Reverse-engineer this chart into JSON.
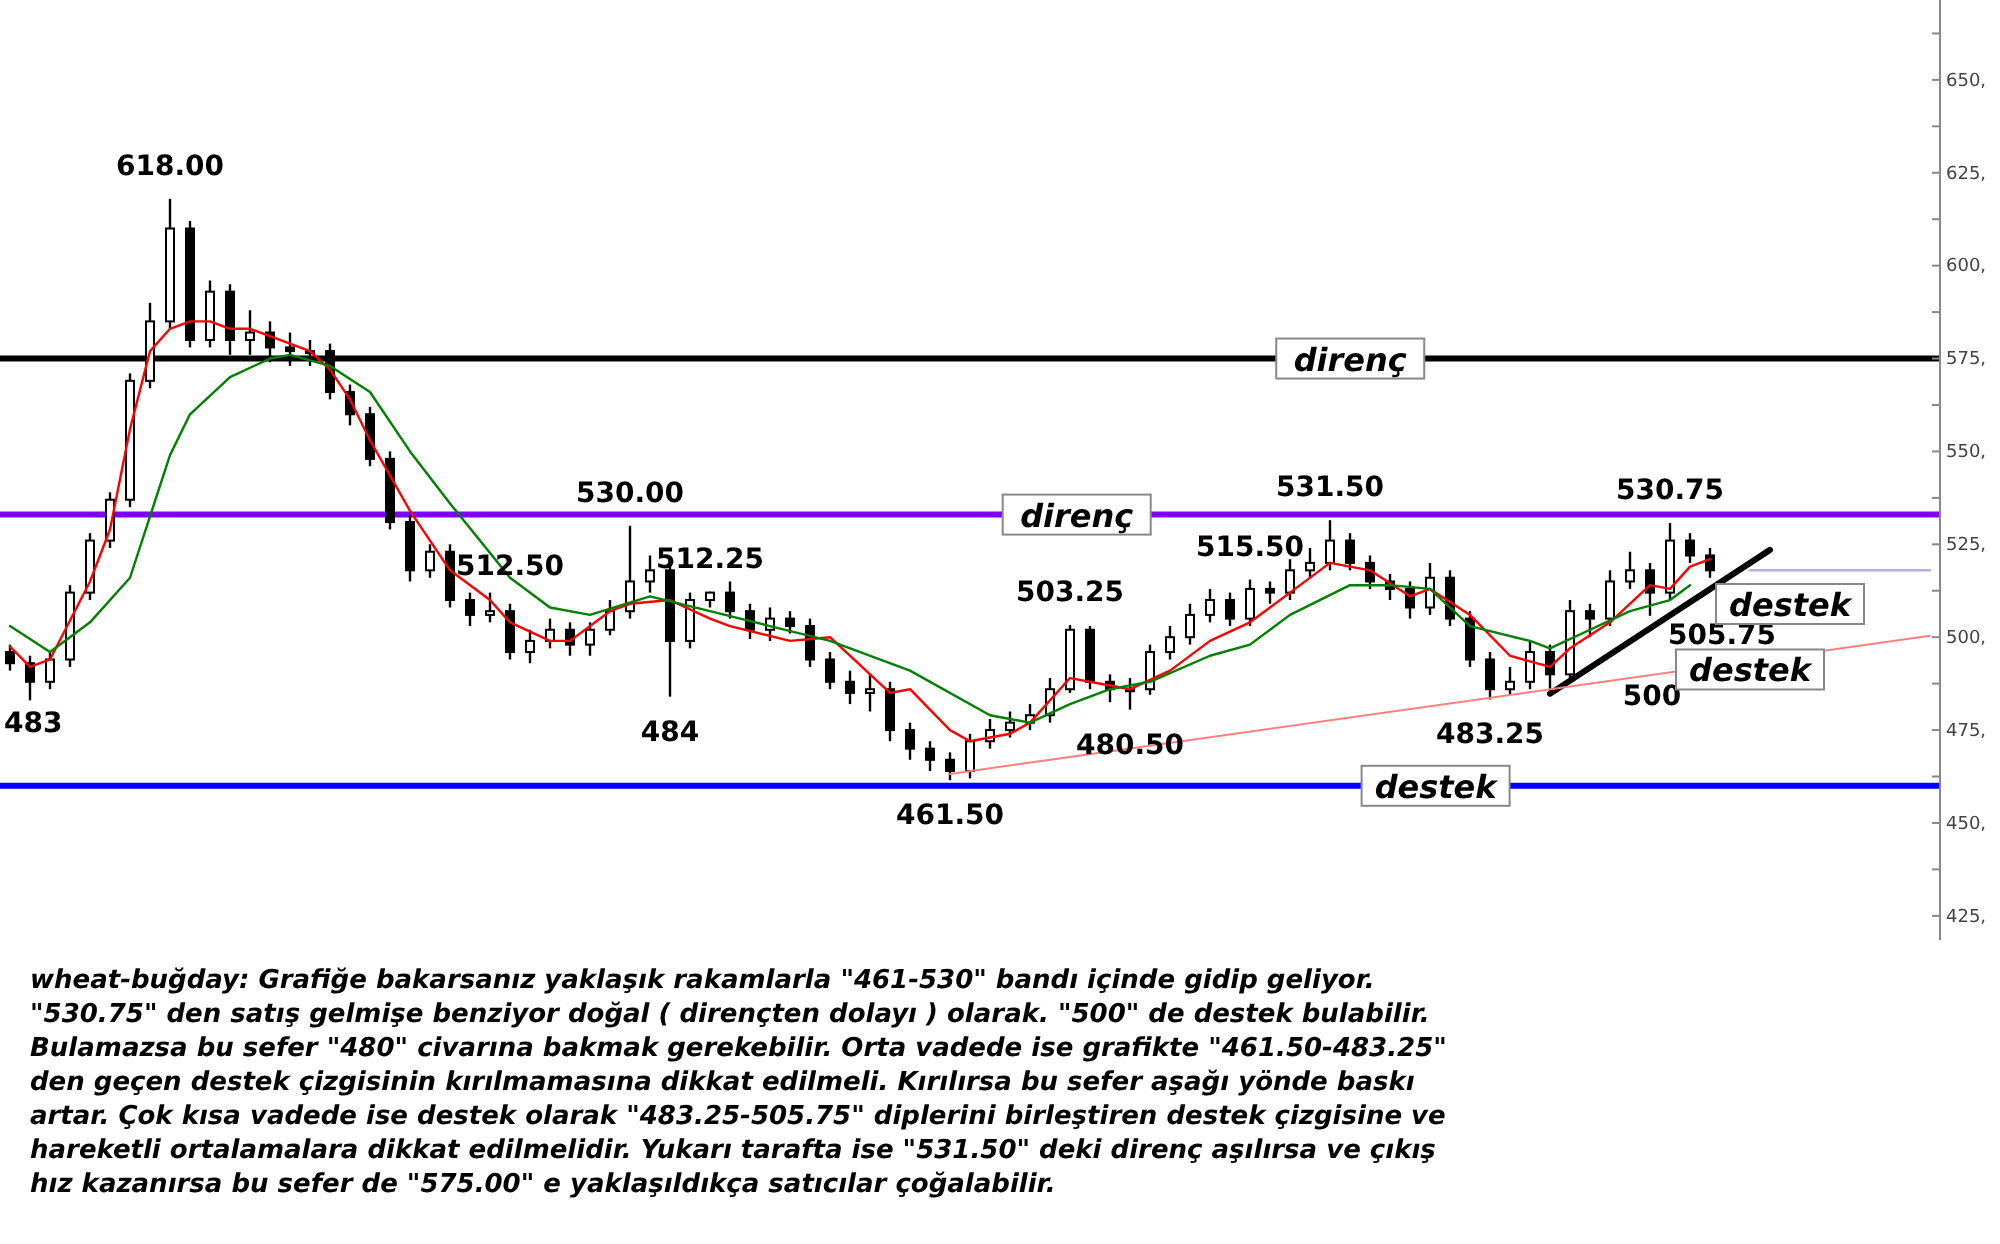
{
  "chart_data": {
    "type": "candlestick",
    "categories": [
      null,
      null,
      null,
      null,
      null,
      null,
      null,
      null,
      null,
      null,
      null,
      null,
      null,
      null,
      null,
      null,
      null,
      null,
      null,
      null,
      null,
      null,
      null,
      null,
      null,
      null,
      null,
      null,
      null,
      null,
      null,
      null,
      null,
      null,
      null,
      null,
      null,
      null,
      null,
      null,
      null,
      null,
      null,
      null,
      null,
      null,
      null,
      null,
      null,
      null,
      null,
      null,
      null,
      null,
      null,
      null,
      null,
      null,
      null,
      null,
      null,
      null,
      null,
      null,
      null,
      null,
      null,
      null,
      null,
      null,
      null,
      null,
      null,
      null,
      null,
      null,
      null,
      null,
      null,
      null,
      null,
      null,
      null,
      null,
      null,
      null,
      null,
      null,
      null,
      null,
      null,
      null,
      null,
      null,
      null,
      null,
      null
    ],
    "ylim": [
      418.5,
      671.5
    ],
    "yticks": [
      {
        "value": 425,
        "label": "425,"
      },
      {
        "value": 437.5,
        "label": null
      },
      {
        "value": 450,
        "label": "450,"
      },
      {
        "value": 462.5,
        "label": null
      },
      {
        "value": 475,
        "label": "475,"
      },
      {
        "value": 487.5,
        "label": null
      },
      {
        "value": 500,
        "label": "500,"
      },
      {
        "value": 512.5,
        "label": null
      },
      {
        "value": 525,
        "label": "525,"
      },
      {
        "value": 537.5,
        "label": null
      },
      {
        "value": 550,
        "label": "550,"
      },
      {
        "value": 562.5,
        "label": null
      },
      {
        "value": 575,
        "label": "575,"
      },
      {
        "value": 587.5,
        "label": null
      },
      {
        "value": 600,
        "label": "600,"
      },
      {
        "value": 612.5,
        "label": null
      },
      {
        "value": 625,
        "label": "625,"
      },
      {
        "value": 637.5,
        "label": null
      },
      {
        "value": 650,
        "label": "650,"
      },
      {
        "value": 662.5,
        "label": null
      }
    ],
    "tick_labels": "y",
    "series": [
      {
        "color": "#000000",
        "ohlc": [
          [
            496,
            498,
            491,
            493
          ],
          [
            493,
            495,
            483,
            488
          ],
          [
            488,
            496,
            486,
            494
          ],
          [
            494,
            514,
            492,
            512
          ],
          [
            512,
            528,
            510,
            526
          ],
          [
            526,
            539,
            524,
            537
          ],
          [
            537,
            571,
            535,
            569
          ],
          [
            569,
            590,
            567,
            585
          ],
          [
            585,
            618,
            583,
            610
          ],
          [
            610,
            612,
            578,
            580
          ],
          [
            580,
            596,
            578,
            593
          ],
          [
            593,
            595,
            576,
            580
          ],
          [
            580,
            588,
            576,
            582
          ],
          [
            582,
            585,
            574,
            578
          ],
          [
            578,
            582,
            573,
            577
          ],
          [
            577,
            580,
            573,
            577
          ],
          [
            577,
            579,
            564,
            566
          ],
          [
            566,
            568,
            557,
            560
          ],
          [
            560,
            562,
            546,
            548
          ],
          [
            548,
            550,
            529,
            531
          ],
          [
            531,
            533,
            515,
            518
          ],
          [
            518,
            525,
            516,
            523
          ],
          [
            523,
            525,
            508,
            510
          ],
          [
            510,
            512,
            503,
            506
          ],
          [
            506,
            512,
            504,
            507
          ],
          [
            507,
            509,
            494,
            496
          ],
          [
            496,
            502,
            493,
            499
          ],
          [
            499,
            505,
            497,
            502
          ],
          [
            502,
            504,
            495,
            498
          ],
          [
            498,
            504,
            495,
            502
          ],
          [
            502,
            510,
            500.5,
            507
          ],
          [
            507,
            530,
            505,
            515
          ],
          [
            515,
            522,
            512,
            518
          ],
          [
            518,
            520,
            484,
            499
          ],
          [
            499,
            512,
            497,
            510
          ],
          [
            510,
            512.25,
            508,
            512
          ],
          [
            512,
            515,
            505,
            507
          ],
          [
            507,
            509,
            499.5,
            502
          ],
          [
            502,
            508,
            499,
            505
          ],
          [
            505,
            507,
            501,
            503
          ],
          [
            503,
            505,
            492,
            494
          ],
          [
            494,
            496,
            486,
            488
          ],
          [
            488,
            491,
            482,
            485
          ],
          [
            485,
            490,
            480,
            486
          ],
          [
            486,
            488,
            472,
            475
          ],
          [
            475,
            477,
            467,
            470
          ],
          [
            470,
            472,
            464,
            467
          ],
          [
            467,
            469,
            461.5,
            464
          ],
          [
            464,
            474,
            462,
            472
          ],
          [
            472,
            478,
            470,
            475
          ],
          [
            475,
            480,
            473,
            477
          ],
          [
            477,
            482,
            475,
            479
          ],
          [
            479,
            489,
            477,
            486
          ],
          [
            486,
            503.25,
            485,
            502
          ],
          [
            502,
            503,
            486,
            488
          ],
          [
            488,
            490,
            482.5,
            486
          ],
          [
            486,
            489,
            480.5,
            486
          ],
          [
            486,
            498,
            484.5,
            496
          ],
          [
            496,
            503,
            494,
            500
          ],
          [
            500,
            509,
            498,
            506
          ],
          [
            506,
            513,
            504,
            510
          ],
          [
            510,
            512,
            503,
            505
          ],
          [
            505,
            515.5,
            503,
            513
          ],
          [
            513,
            515,
            509,
            512
          ],
          [
            512,
            521,
            510,
            518
          ],
          [
            518,
            524,
            516,
            520
          ],
          [
            520,
            531.5,
            518,
            526
          ],
          [
            526,
            528,
            518,
            520
          ],
          [
            520,
            522,
            513,
            515
          ],
          [
            515,
            517,
            510,
            513
          ],
          [
            513,
            515,
            505,
            508
          ],
          [
            508,
            520,
            506,
            516
          ],
          [
            516,
            518,
            503,
            505
          ],
          [
            505,
            507,
            492,
            494
          ],
          [
            494,
            496,
            483.25,
            486
          ],
          [
            486,
            492,
            484.5,
            488
          ],
          [
            488,
            499,
            486,
            496
          ],
          [
            496,
            498,
            485,
            490
          ],
          [
            490,
            510,
            488,
            507
          ],
          [
            507,
            509,
            500,
            505
          ],
          [
            505,
            518,
            503,
            515
          ],
          [
            515,
            523,
            513,
            518
          ],
          [
            518,
            520,
            505.75,
            512
          ],
          [
            512,
            530.75,
            510,
            526
          ],
          [
            526,
            528,
            520,
            522
          ],
          [
            522,
            524,
            516,
            518
          ],
          null,
          null,
          null,
          null,
          null,
          null,
          null,
          null,
          null,
          null,
          null
        ]
      },
      {
        "type": "line",
        "color": "#ff0000",
        "values": [
          497.5,
          492,
          494,
          null,
          515,
          529,
          556,
          577,
          583,
          585,
          585,
          583,
          583,
          581,
          null,
          577,
          572,
          564,
          553,
          null,
          534,
          526,
          518,
          null,
          510,
          504,
          null,
          499,
          499,
          null,
          507,
          509,
          null,
          510,
          null,
          505,
          503,
          null,
          null,
          499,
          null,
          500,
          null,
          null,
          485,
          486,
          null,
          475,
          472,
          null,
          474,
          477,
          null,
          489,
          null,
          487,
          486,
          null,
          491,
          null,
          499,
          null,
          504,
          null,
          512,
          null,
          520,
          null,
          518,
          null,
          511,
          513,
          null,
          506,
          null,
          495,
          null,
          492,
          497,
          null,
          504,
          null,
          514,
          513,
          519,
          521,
          null,
          null,
          null,
          null,
          null,
          null,
          null,
          null,
          null,
          null,
          null
        ]
      },
      {
        "type": "line",
        "color": "#008000",
        "values": [
          503,
          null,
          496,
          null,
          504,
          null,
          516,
          null,
          549,
          560,
          null,
          570,
          null,
          575,
          576,
          null,
          573,
          null,
          566,
          null,
          550,
          null,
          536,
          null,
          null,
          516,
          null,
          508,
          null,
          506,
          null,
          null,
          511,
          null,
          null,
          507,
          null,
          null,
          503,
          null,
          null,
          499,
          null,
          null,
          null,
          491,
          null,
          null,
          null,
          479,
          null,
          477,
          null,
          482,
          null,
          486,
          null,
          488,
          null,
          null,
          495,
          null,
          498,
          null,
          506,
          null,
          null,
          514,
          null,
          514,
          null,
          513,
          null,
          503,
          null,
          null,
          499,
          497,
          null,
          502,
          null,
          507,
          null,
          510,
          514,
          null,
          null,
          null,
          null,
          null,
          null,
          null,
          null,
          null,
          null,
          null,
          null
        ]
      },
      {
        "type": "line",
        "color": "#000000",
        "values": [
          null,
          null,
          null,
          null,
          null,
          null,
          null,
          null,
          null,
          null,
          null,
          null,
          null,
          null,
          null,
          null,
          null,
          null,
          null,
          null,
          null,
          null,
          null,
          null,
          null,
          null,
          null,
          null,
          null,
          null,
          null,
          null,
          null,
          null,
          null,
          null,
          null,
          null,
          null,
          null,
          null,
          null,
          null,
          null,
          null,
          null,
          null,
          null,
          null,
          null,
          null,
          null,
          null,
          null,
          null,
          null,
          null,
          null,
          null,
          null,
          null,
          null,
          null,
          null,
          null,
          null,
          null,
          null,
          null,
          null,
          null,
          null,
          null,
          null,
          null,
          null,
          null,
          484.8,
          null,
          null,
          null,
          null,
          null,
          null,
          null,
          null,
          null,
          null,
          523.5,
          null,
          null,
          null,
          null,
          null,
          null,
          null,
          null
        ]
      },
      {
        "type": "line",
        "color": "#ff8080",
        "values": [
          null,
          null,
          null,
          null,
          null,
          null,
          null,
          null,
          null,
          null,
          null,
          null,
          null,
          null,
          null,
          null,
          null,
          null,
          null,
          null,
          null,
          null,
          null,
          null,
          null,
          null,
          null,
          null,
          null,
          null,
          null,
          null,
          null,
          null,
          null,
          null,
          null,
          null,
          null,
          null,
          null,
          null,
          null,
          null,
          null,
          null,
          null,
          463.2,
          null,
          null,
          null,
          null,
          null,
          null,
          null,
          null,
          null,
          null,
          null,
          null,
          null,
          null,
          null,
          null,
          null,
          null,
          null,
          null,
          null,
          null,
          null,
          null,
          null,
          null,
          null,
          null,
          null,
          null,
          null,
          null,
          null,
          null,
          null,
          null,
          null,
          null,
          null,
          null,
          null,
          null,
          null,
          null,
          null,
          null,
          null,
          null,
          500.4
        ]
      },
      {
        "type": "line",
        "color": "#b0b0e0",
        "values": [
          null,
          null,
          null,
          null,
          null,
          null,
          null,
          null,
          null,
          null,
          null,
          null,
          null,
          null,
          null,
          null,
          null,
          null,
          null,
          null,
          null,
          null,
          null,
          null,
          null,
          null,
          null,
          null,
          null,
          null,
          null,
          null,
          null,
          null,
          null,
          null,
          null,
          null,
          null,
          null,
          null,
          null,
          null,
          null,
          null,
          null,
          null,
          null,
          null,
          null,
          null,
          null,
          null,
          null,
          null,
          null,
          null,
          null,
          null,
          null,
          null,
          null,
          null,
          null,
          null,
          null,
          null,
          null,
          null,
          null,
          null,
          null,
          null,
          null,
          null,
          null,
          null,
          null,
          null,
          null,
          null,
          null,
          null,
          null,
          null,
          null,
          null,
          518,
          null,
          null,
          null,
          null,
          null,
          null,
          null,
          null,
          518
        ]
      }
    ],
    "ref_lines": [
      {
        "axis": "y",
        "value": 575,
        "label": "direnç",
        "color": "#000000"
      },
      {
        "axis": "y",
        "value": 533,
        "label": "direnç",
        "color": "#8000ff"
      },
      {
        "axis": "y",
        "value": 460,
        "label": "destek",
        "color": "#0000ff"
      }
    ],
    "annotations": [
      "483",
      {
        "text": "618.00",
        "y": 618
      },
      {
        "text": "512.50",
        "y": 512.5
      },
      {
        "text": "530.00",
        "y": 530
      },
      {
        "text": "484",
        "y": 484
      },
      {
        "text": "512.25",
        "y": 512.25
      },
      {
        "text": "461.50",
        "y": 461.5
      },
      {
        "text": "503.25",
        "y": 503.25
      },
      {
        "text": "480.50",
        "y": 480.5
      },
      {
        "text": "515.50",
        "y": 515.5
      },
      {
        "text": "531.50",
        "y": 531.5
      },
      {
        "text": "483.25",
        "y": 483.25
      },
      {
        "text": "500",
        "y": 500
      },
      "505.75",
      {
        "text": "530.75",
        "y": 530.75
      },
      "destek",
      {
        "text": "destek",
        "y": 494
      },
      "wheat-buğday: Grafiğe bakarsanız yaklaşık rakamlarla \"461-530\" bandı içinde gidip geliyor. \"530.75\" den satış gelmişe benziyor doğal ( dirençten dolayı ) olarak. \"500\" de destek bulabilir. Bulamazsa bu sefer \"480\" civarına bakmak gerekebilir.  Orta vadede ise grafikte \"461.50-483.25\" den geçen destek çizgisinin kırılmamasına dikkat edilmeli. Kırılırsa bu sefer aşağı yönde baskı artar. Çok kısa vadede ise destek olarak \"483.25-505.75\" diplerini birleştiren destek çizgisine ve hareketli ortalamalara dikkat edilmelidir. Yukarı tarafta ise \"531.50\" deki direnç aşılırsa ve çıkış hız kazanırsa bu sefer de \"575.00\" e yaklaşıldıkça satıcılar çoğalabilir."
    ]
  }
}
